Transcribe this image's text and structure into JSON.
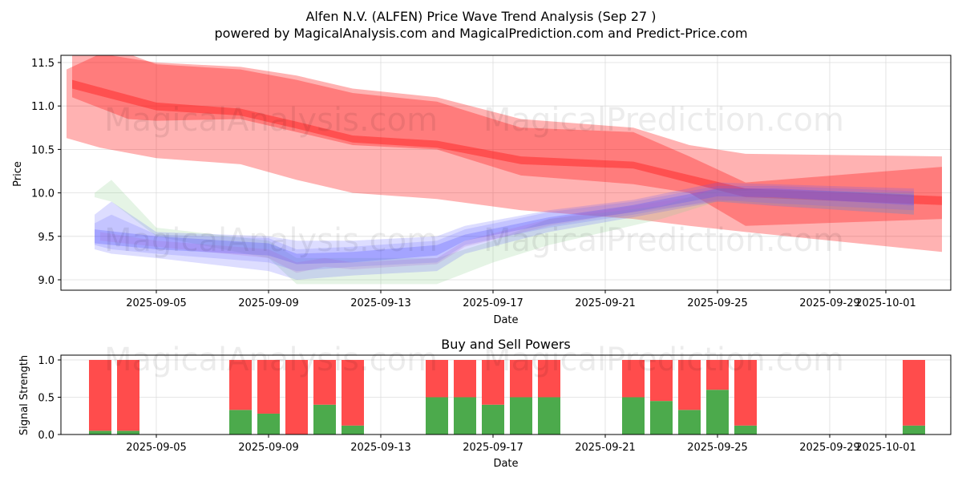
{
  "title": "Alfen N.V. (ALFEN) Price Wave Trend Analysis (Sep 27 )",
  "subtitle": "powered by MagicalAnalysis.com and MagicalPrediction.com and Predict-Price.com",
  "watermarks": [
    "MagicalAnalysis.com",
    "MagicalPrediction.com"
  ],
  "chart_data": [
    {
      "type": "area",
      "title": "",
      "xlabel": "Date",
      "ylabel": "Price",
      "ylim": [
        8.87,
        11.58
      ],
      "x_unit": "day of Sep 2025 (31 = Oct 1)",
      "xticks": [
        {
          "day": 5,
          "label": "2025-09-05"
        },
        {
          "day": 9,
          "label": "2025-09-09"
        },
        {
          "day": 13,
          "label": "2025-09-13"
        },
        {
          "day": 17,
          "label": "2025-09-17"
        },
        {
          "day": 21,
          "label": "2025-09-21"
        },
        {
          "day": 25,
          "label": "2025-09-25"
        },
        {
          "day": 29,
          "label": "2025-09-29"
        },
        {
          "day": 31,
          "label": "2025-10-01"
        }
      ],
      "yticks": [
        "9.0",
        "9.5",
        "10.0",
        "10.5",
        "11.0",
        "11.5"
      ],
      "yticks_values": [
        9.0,
        9.5,
        10.0,
        10.5,
        11.0,
        11.5
      ],
      "grid": true,
      "bands": [
        {
          "name": "red-outer",
          "color": "#ff0000",
          "opacity": 0.3,
          "x": [
            1.8,
            3,
            5,
            8,
            10,
            12,
            15,
            18,
            22,
            24,
            26,
            33
          ],
          "upper": [
            11.42,
            11.6,
            11.5,
            11.45,
            11.35,
            11.2,
            11.1,
            10.85,
            10.75,
            10.55,
            10.45,
            10.42
          ],
          "lower": [
            10.63,
            10.52,
            10.4,
            10.33,
            10.15,
            10.0,
            9.93,
            9.8,
            9.7,
            9.62,
            9.55,
            9.32
          ]
        },
        {
          "name": "red-inner",
          "color": "#ff0000",
          "opacity": 0.3,
          "x": [
            2,
            4,
            5,
            8,
            10,
            12,
            15,
            18,
            22,
            24,
            26,
            33
          ],
          "upper": [
            11.6,
            11.6,
            11.48,
            11.42,
            11.3,
            11.15,
            11.05,
            10.75,
            10.7,
            10.42,
            10.12,
            10.3
          ],
          "lower": [
            11.1,
            10.85,
            10.83,
            10.85,
            10.7,
            10.55,
            10.5,
            10.2,
            10.1,
            10.0,
            9.62,
            9.7
          ]
        },
        {
          "name": "red-core",
          "color": "#ff0000",
          "opacity": 0.35,
          "x": [
            2,
            5,
            8,
            10,
            12,
            15,
            18,
            22,
            26,
            33
          ],
          "upper": [
            11.3,
            11.04,
            10.97,
            10.82,
            10.66,
            10.6,
            10.42,
            10.36,
            10.05,
            9.96
          ],
          "lower": [
            11.2,
            10.95,
            10.89,
            10.74,
            10.58,
            10.52,
            10.33,
            10.28,
            9.95,
            9.86
          ]
        },
        {
          "name": "green",
          "color": "#88cc88",
          "opacity": 0.22,
          "x": [
            2.8,
            3.4,
            5,
            9,
            10,
            15,
            17,
            19,
            23,
            25,
            32
          ],
          "upper": [
            10.0,
            10.15,
            9.6,
            9.45,
            9.25,
            9.25,
            9.45,
            9.7,
            9.85,
            10.05,
            10.0
          ],
          "lower": [
            9.95,
            9.9,
            9.5,
            9.25,
            8.95,
            8.95,
            9.2,
            9.4,
            9.7,
            9.9,
            9.75
          ]
        },
        {
          "name": "blue-1",
          "color": "#5555ff",
          "opacity": 0.2,
          "x": [
            2.8,
            3.4,
            5,
            9,
            10,
            12,
            15,
            16,
            19,
            22,
            25,
            27,
            32
          ],
          "upper": [
            9.75,
            9.9,
            9.55,
            9.5,
            9.45,
            9.45,
            9.5,
            9.62,
            9.8,
            9.92,
            10.12,
            10.1,
            10.05
          ],
          "lower": [
            9.35,
            9.3,
            9.25,
            9.1,
            9.0,
            9.05,
            9.1,
            9.3,
            9.55,
            9.72,
            9.9,
            9.85,
            9.75
          ]
        },
        {
          "name": "blue-2",
          "color": "#6666ff",
          "opacity": 0.2,
          "x": [
            2.8,
            3.4,
            5,
            9,
            10,
            12,
            15,
            16,
            19,
            22,
            25,
            27,
            32
          ],
          "upper": [
            9.65,
            9.75,
            9.52,
            9.48,
            9.35,
            9.38,
            9.45,
            9.58,
            9.78,
            9.9,
            10.08,
            10.08,
            10.02
          ],
          "lower": [
            9.4,
            9.35,
            9.3,
            9.2,
            9.1,
            9.15,
            9.2,
            9.4,
            9.6,
            9.75,
            9.92,
            9.88,
            9.8
          ]
        },
        {
          "name": "blue-3",
          "color": "#4444ff",
          "opacity": 0.25,
          "x": [
            2.8,
            5,
            9,
            10,
            12,
            15,
            16,
            19,
            22,
            25,
            27,
            32
          ],
          "upper": [
            9.58,
            9.5,
            9.42,
            9.3,
            9.32,
            9.4,
            9.52,
            9.72,
            9.86,
            10.05,
            10.05,
            9.98
          ],
          "lower": [
            9.42,
            9.35,
            9.28,
            9.18,
            9.2,
            9.28,
            9.45,
            9.64,
            9.78,
            9.96,
            9.95,
            9.86
          ]
        },
        {
          "name": "purple",
          "color": "#aa66cc",
          "opacity": 0.2,
          "x": [
            3,
            5,
            9,
            10,
            11,
            12,
            15,
            16,
            19,
            22,
            25,
            27,
            32
          ],
          "upper": [
            9.55,
            9.45,
            9.35,
            9.2,
            9.25,
            9.2,
            9.25,
            9.45,
            9.7,
            9.85,
            10.0,
            10.05,
            9.95
          ],
          "lower": [
            9.45,
            9.38,
            9.25,
            9.08,
            9.15,
            9.12,
            9.18,
            9.38,
            9.62,
            9.78,
            9.9,
            9.95,
            9.85
          ]
        }
      ]
    },
    {
      "type": "bar",
      "title": "Buy and Sell Powers",
      "xlabel": "Date",
      "ylabel": "Signal Strength",
      "ylim": [
        0,
        1.05
      ],
      "yticks": [
        "0.0",
        "0.5",
        "1.0"
      ],
      "yticks_values": [
        0,
        0.5,
        1.0
      ],
      "grid": true,
      "days": [
        3,
        4,
        8,
        9,
        10,
        11,
        12,
        15,
        16,
        17,
        18,
        19,
        22,
        23,
        24,
        25,
        26,
        32
      ],
      "series": [
        {
          "name": "Buy",
          "color": "#4caa4c",
          "values": [
            0.05,
            0.05,
            0.33,
            0.28,
            0.0,
            0.4,
            0.12,
            0.5,
            0.5,
            0.4,
            0.5,
            0.5,
            0.5,
            0.45,
            0.33,
            0.6,
            0.12,
            0.12
          ]
        },
        {
          "name": "Sell",
          "color": "#ff4c4c",
          "values": [
            0.95,
            0.95,
            0.67,
            0.72,
            1.0,
            0.6,
            0.88,
            0.5,
            0.5,
            0.6,
            0.5,
            0.5,
            0.5,
            0.55,
            0.67,
            0.4,
            0.88,
            0.88
          ]
        }
      ]
    }
  ]
}
